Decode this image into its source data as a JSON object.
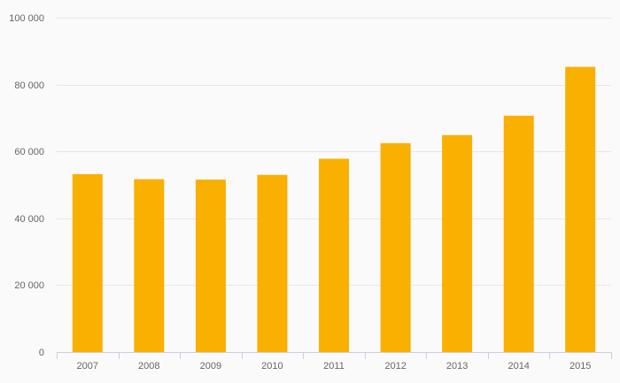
{
  "chart_data": {
    "type": "bar",
    "title": "",
    "xlabel": "",
    "ylabel": "",
    "categories": [
      "2007",
      "2008",
      "2009",
      "2010",
      "2011",
      "2012",
      "2013",
      "2014",
      "2015"
    ],
    "series": [
      {
        "values": [
          53200,
          51700,
          51600,
          53000,
          57800,
          62500,
          64900,
          70700,
          85300
        ]
      }
    ],
    "ylim": [
      0,
      100000
    ],
    "yticks": [
      0,
      20000,
      40000,
      60000,
      80000,
      100000
    ],
    "ytick_labels": [
      "0",
      "20 000",
      "40 000",
      "60 000",
      "80 000",
      "100 000"
    ],
    "grid": true,
    "legend": "none",
    "colors": {
      "bar": "#f9b000",
      "grid": "#e6e6e6",
      "axis": "#c8cfe0",
      "background": "#fafafa",
      "text": "#666666"
    }
  }
}
